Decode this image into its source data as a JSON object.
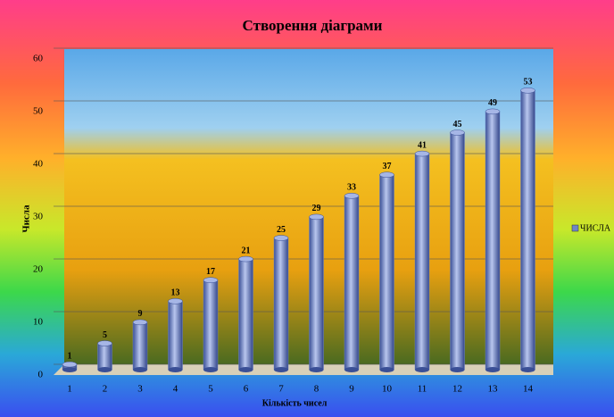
{
  "chart_data": {
    "type": "bar",
    "title": "Створення діаграми",
    "x_label": "Кількість чисел",
    "y_label": "Числа",
    "categories": [
      "1",
      "2",
      "3",
      "4",
      "5",
      "6",
      "7",
      "8",
      "9",
      "10",
      "11",
      "12",
      "13",
      "14"
    ],
    "series": [
      {
        "name": "ЧИСЛА",
        "color": "#6f86c8",
        "values": [
          1,
          5,
          9,
          13,
          17,
          21,
          25,
          29,
          33,
          37,
          41,
          45,
          49,
          53
        ]
      }
    ],
    "ylim": [
      0,
      60
    ],
    "yticks": [
      0,
      10,
      20,
      30,
      40,
      50,
      60
    ],
    "grid": true,
    "legend": "right"
  }
}
